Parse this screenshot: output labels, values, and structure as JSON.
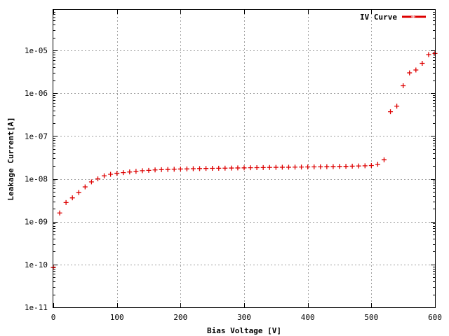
{
  "chart_data": {
    "type": "scatter",
    "title": "",
    "xlabel": "Bias Voltage [V]",
    "ylabel": "Leakage Current[A]",
    "xlim": [
      0,
      600
    ],
    "ylim_exponent": [
      -11,
      -4.05
    ],
    "yscale": "log",
    "grid": true,
    "legend_position": "top-right",
    "x_ticks": [
      0,
      100,
      200,
      300,
      400,
      500,
      600
    ],
    "x_tick_labels": [
      "0",
      "100",
      "200",
      "300",
      "400",
      "500",
      "600"
    ],
    "y_ticks": [
      1e-11,
      1e-10,
      1e-09,
      1e-08,
      1e-07,
      1e-06,
      1e-05
    ],
    "y_tick_labels": [
      "1e-11",
      "1e-10",
      "1e-09",
      "1e-08",
      "1e-07",
      "1e-06",
      "1e-05"
    ],
    "series": [
      {
        "name": "IV Curve",
        "color": "#dd0000",
        "marker": "plus",
        "x": [
          0,
          10,
          20,
          30,
          40,
          50,
          60,
          70,
          80,
          90,
          100,
          110,
          120,
          130,
          140,
          150,
          160,
          170,
          180,
          190,
          200,
          210,
          220,
          230,
          240,
          250,
          260,
          270,
          280,
          290,
          300,
          310,
          320,
          330,
          340,
          350,
          360,
          370,
          380,
          390,
          400,
          410,
          420,
          430,
          440,
          450,
          460,
          470,
          480,
          490,
          500,
          510,
          520,
          530,
          540,
          550,
          560,
          570,
          580,
          590,
          600
        ],
        "y": [
          8.5e-11,
          1.6e-09,
          2.8e-09,
          3.6e-09,
          4.8e-09,
          6.5e-09,
          8.5e-09,
          1e-08,
          1.18e-08,
          1.28e-08,
          1.35e-08,
          1.4e-08,
          1.45e-08,
          1.5e-08,
          1.55e-08,
          1.58e-08,
          1.62e-08,
          1.64e-08,
          1.66e-08,
          1.68e-08,
          1.7e-08,
          1.71e-08,
          1.73e-08,
          1.74e-08,
          1.75e-08,
          1.76e-08,
          1.77e-08,
          1.78e-08,
          1.79e-08,
          1.8e-08,
          1.81e-08,
          1.82e-08,
          1.83e-08,
          1.84e-08,
          1.85e-08,
          1.86e-08,
          1.87e-08,
          1.87e-08,
          1.88e-08,
          1.89e-08,
          1.9e-08,
          1.91e-08,
          1.92e-08,
          1.93e-08,
          1.94e-08,
          1.95e-08,
          1.96e-08,
          1.98e-08,
          2e-08,
          2.02e-08,
          2.05e-08,
          2.2e-08,
          2.8e-08,
          3.7e-07,
          5e-07,
          1.5e-06,
          3e-06,
          3.5e-06,
          5e-06,
          8e-06,
          8.5e-06
        ]
      }
    ]
  }
}
